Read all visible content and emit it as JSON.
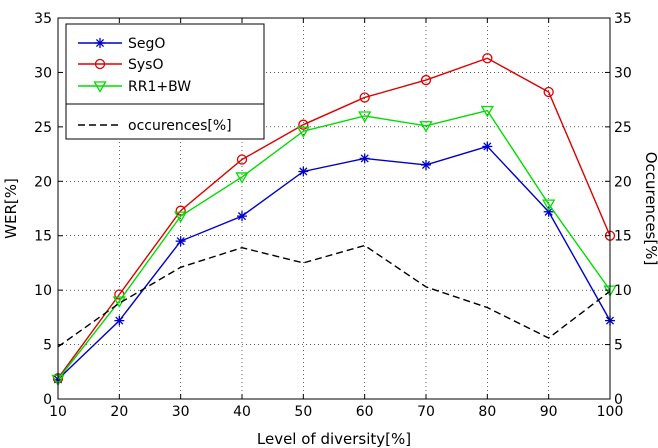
{
  "chart_data": {
    "type": "line",
    "xlabel": "Level of diversity[%]",
    "ylabel_left": "WER[%]",
    "ylabel_right": "Occurences[%]",
    "x": [
      10,
      20,
      30,
      40,
      50,
      60,
      70,
      80,
      90,
      100
    ],
    "xlim": [
      10,
      100
    ],
    "ylim": [
      0,
      35
    ],
    "xticks": [
      10,
      20,
      30,
      40,
      50,
      60,
      70,
      80,
      90,
      100
    ],
    "yticks": [
      0,
      5,
      10,
      15,
      20,
      25,
      30,
      35
    ],
    "grid": true,
    "legend_position": "top-left",
    "series": [
      {
        "name": "SegO",
        "color": "#0000cc",
        "marker": "asterisk",
        "dashed": false,
        "axis": "left",
        "values": [
          1.8,
          7.2,
          14.5,
          16.8,
          20.9,
          22.1,
          21.5,
          23.2,
          17.2,
          7.2
        ]
      },
      {
        "name": "SysO",
        "color": "#dd0000",
        "marker": "circle",
        "dashed": false,
        "axis": "left",
        "values": [
          1.9,
          9.6,
          17.3,
          22.0,
          25.2,
          27.7,
          29.3,
          31.3,
          28.2,
          15.0
        ]
      },
      {
        "name": "RR1+BW",
        "color": "#00dd00",
        "marker": "triangle-down",
        "dashed": false,
        "axis": "left",
        "values": [
          1.8,
          9.0,
          16.8,
          20.4,
          24.6,
          26.0,
          25.1,
          26.5,
          17.9,
          10.0
        ]
      },
      {
        "name": "occurences[%]",
        "color": "#000000",
        "marker": "none",
        "dashed": true,
        "axis": "right",
        "values": [
          4.8,
          8.8,
          12.1,
          13.9,
          12.5,
          14.1,
          10.3,
          8.4,
          5.6,
          9.9
        ]
      }
    ]
  }
}
